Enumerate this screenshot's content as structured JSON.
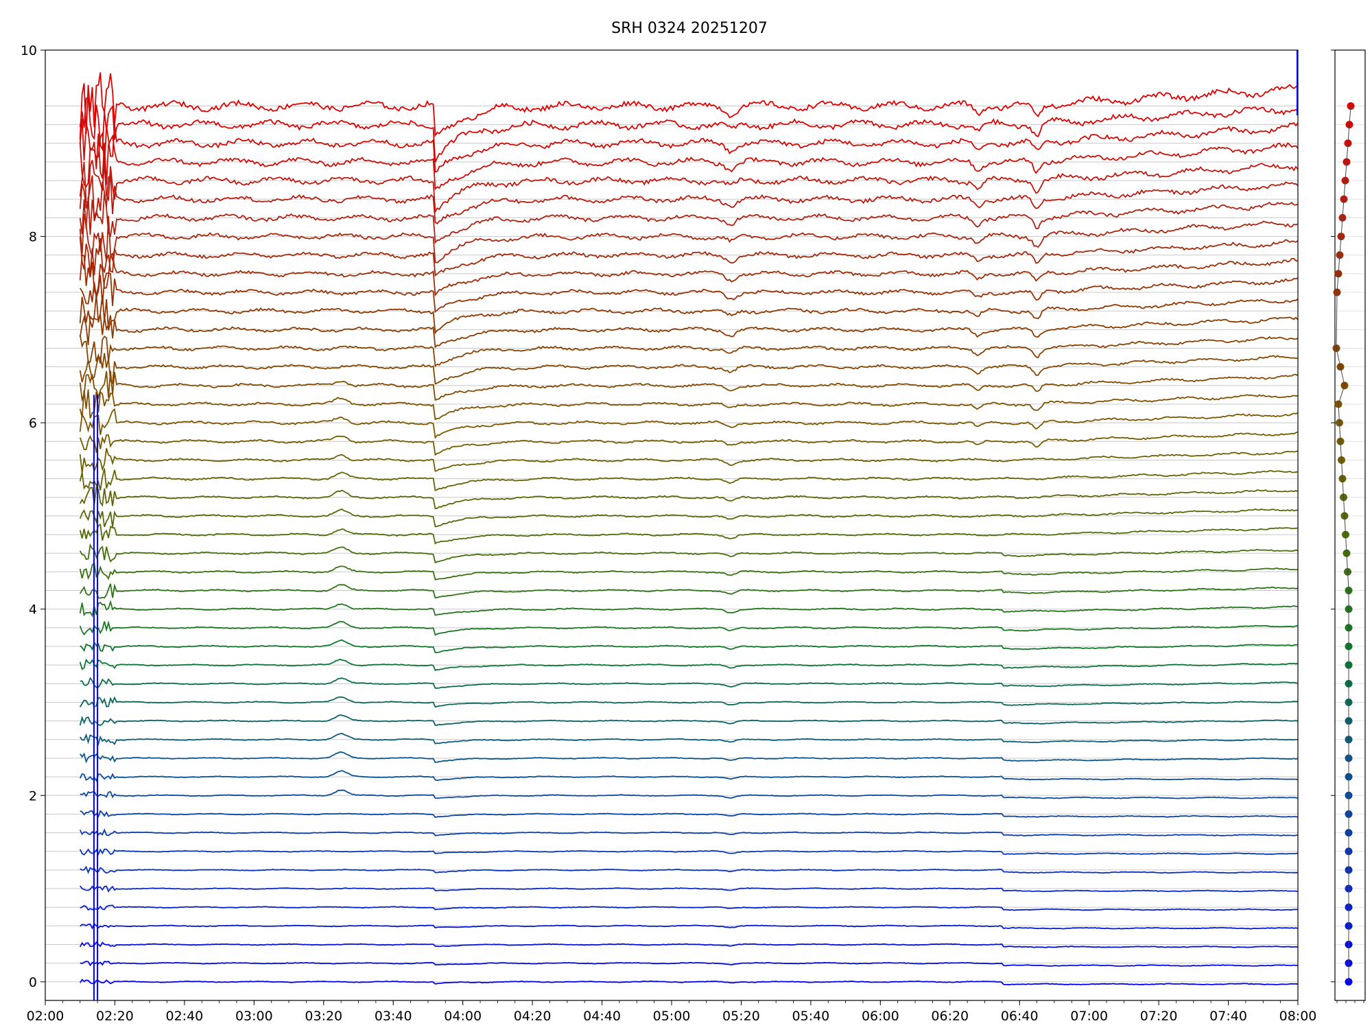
{
  "chart_data": {
    "type": "line",
    "title": "SRH 0324 20251207",
    "xlabel": "",
    "ylabel": "",
    "x_ticks": [
      "02:00",
      "02:20",
      "02:40",
      "03:00",
      "03:20",
      "03:40",
      "04:00",
      "04:20",
      "04:40",
      "05:00",
      "05:20",
      "05:40",
      "06:00",
      "06:20",
      "06:40",
      "07:00",
      "07:20",
      "07:40",
      "08:00"
    ],
    "y_ticks": [
      "0",
      "2",
      "4",
      "6",
      "8",
      "10"
    ],
    "xlim": [
      "02:00",
      "08:00"
    ],
    "ylim": [
      -0.2,
      10
    ],
    "grid": "horizontal",
    "channel_count": 48,
    "channel_spacing": 0.2,
    "series_colors": [
      "#0000ee",
      "#0a2fbf",
      "#0b5390",
      "#0a7a2a",
      "#4a6e0a",
      "#7a5a00",
      "#8a3a00",
      "#b22010",
      "#e00000"
    ],
    "side_panel": {
      "type": "scatter",
      "points_y": [
        9.4,
        9.2,
        9.0,
        8.8,
        8.6,
        8.4,
        8.2,
        8.0,
        7.8,
        7.6,
        7.4,
        6.8,
        6.6,
        6.4,
        6.2,
        6.0,
        5.8,
        5.6,
        5.4,
        5.2,
        5.0,
        4.8,
        4.6,
        4.4,
        4.2,
        4.0,
        3.8,
        3.6,
        3.4,
        3.2,
        3.0,
        2.8,
        2.6,
        2.4,
        2.2,
        2.0,
        1.8,
        1.6,
        1.4,
        1.2,
        1.0,
        0.8,
        0.6,
        0.4,
        0.2,
        0.0
      ]
    }
  }
}
